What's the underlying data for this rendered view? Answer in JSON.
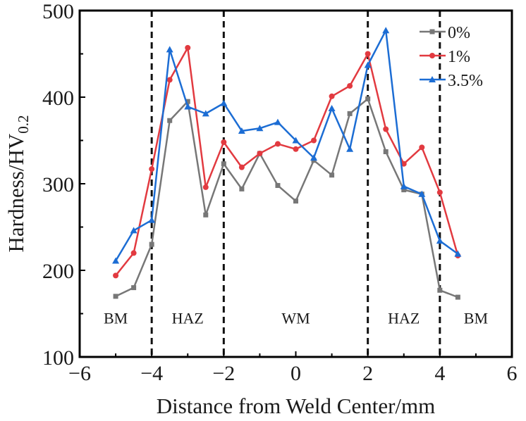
{
  "chart_data": {
    "type": "line",
    "title": "",
    "xlabel": "Distance from Weld Center/mm",
    "ylabel_main": "Hardness/HV",
    "ylabel_sub": "0.2",
    "xlim": [
      -6,
      6
    ],
    "ylim": [
      100,
      500
    ],
    "xticks": [
      -6,
      -4,
      -2,
      0,
      2,
      4,
      6
    ],
    "xtick_labels": [
      "−6",
      "−4",
      "−2",
      "0",
      "2",
      "4",
      "6"
    ],
    "yticks": [
      100,
      200,
      300,
      400,
      500
    ],
    "ytick_labels": [
      "100",
      "200",
      "300",
      "400",
      "500"
    ],
    "x_minor_step": 1,
    "y_minor_step": 50,
    "grid": false,
    "legend_position": "top-right",
    "x": [
      -5,
      -4.5,
      -4,
      -3.5,
      -3,
      -2.5,
      -2,
      -1.5,
      -1,
      -0.5,
      0,
      0.5,
      1,
      1.5,
      2,
      2.5,
      3,
      3.5,
      4,
      4.5
    ],
    "series": [
      {
        "name": "0%",
        "color": "#777777",
        "marker": "square",
        "values": [
          170,
          180,
          230,
          373,
          395,
          264,
          323,
          294,
          335,
          298,
          280,
          327,
          310,
          381,
          398,
          337,
          293,
          288,
          177,
          169
        ]
      },
      {
        "name": "1%",
        "color": "#e23a40",
        "marker": "circle",
        "values": [
          194,
          220,
          317,
          420,
          457,
          296,
          348,
          319,
          335,
          346,
          340,
          350,
          401,
          413,
          450,
          363,
          323,
          342,
          290,
          217
        ]
      },
      {
        "name": "3.5%",
        "color": "#1c6dd4",
        "marker": "triangle",
        "values": [
          211,
          246,
          258,
          455,
          389,
          381,
          393,
          361,
          364,
          371,
          350,
          330,
          387,
          340,
          437,
          477,
          297,
          288,
          234,
          219
        ]
      }
    ],
    "boundaries": [
      -4,
      -2,
      2,
      4
    ],
    "regions": [
      {
        "label": "BM",
        "x": -5
      },
      {
        "label": "HAZ",
        "x": -3
      },
      {
        "label": "WM",
        "x": 0
      },
      {
        "label": "HAZ",
        "x": 3
      },
      {
        "label": "BM",
        "x": 5
      }
    ],
    "region_label_y": 145
  }
}
